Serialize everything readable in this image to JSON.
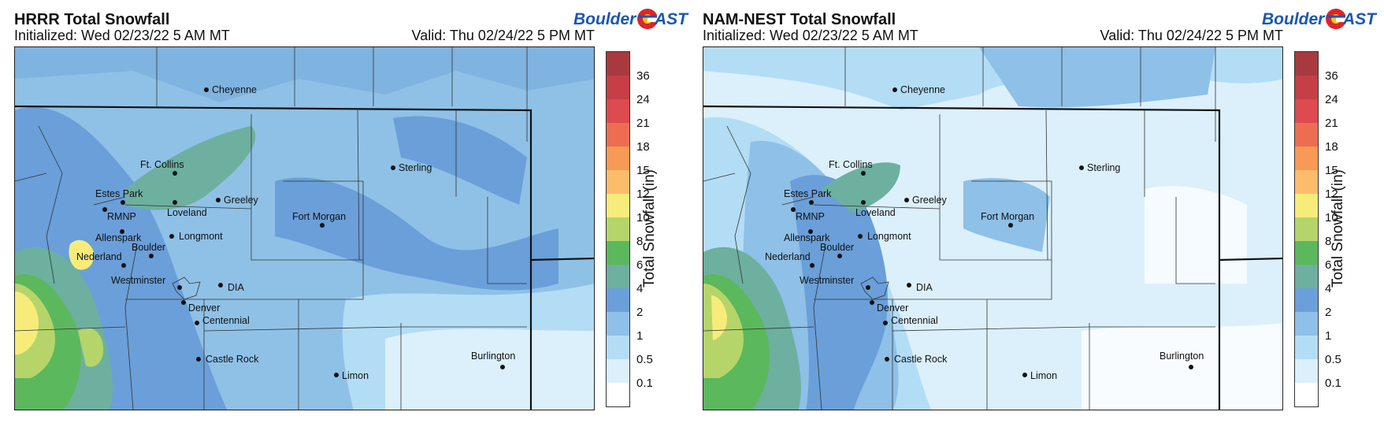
{
  "panels": [
    {
      "id": "hrrr",
      "title": "HRRR Total Snowfall",
      "initialized": "Initialized: Wed 02/23/22 5 AM MT",
      "valid": "Valid: Thu 02/24/22 5 PM MT",
      "logo_left": "Boulder",
      "logo_right": "AST"
    },
    {
      "id": "namnest",
      "title": "NAM-NEST Total Snowfall",
      "initialized": "Initialized: Wed 02/23/22 5 AM MT",
      "valid": "Valid: Thu 02/24/22 5 PM MT",
      "logo_left": "Boulder",
      "logo_right": "AST"
    }
  ],
  "colorbar": {
    "label": "Total Snowfall (in)",
    "ticks": [
      "36",
      "24",
      "21",
      "18",
      "15",
      "12",
      "10",
      "8",
      "6",
      "4",
      "2",
      "1",
      "0.5",
      "0.1"
    ],
    "colors": [
      "#ffffff",
      "#dcf0fb",
      "#b3ddf5",
      "#8ec0e8",
      "#6a9fd9",
      "#6db0a0",
      "#5cb85c",
      "#b5d56a",
      "#f7ec7a",
      "#fbbd6c",
      "#f69a55",
      "#ee6d50",
      "#dd4a4f",
      "#c63f46",
      "#a83a3f"
    ]
  },
  "cities": [
    {
      "name": "Cheyenne"
    },
    {
      "name": "Ft. Collins"
    },
    {
      "name": "Sterling"
    },
    {
      "name": "Estes Park"
    },
    {
      "name": "Greeley"
    },
    {
      "name": "RMNP"
    },
    {
      "name": "Loveland"
    },
    {
      "name": "Fort Morgan"
    },
    {
      "name": "Allenspark"
    },
    {
      "name": "Longmont"
    },
    {
      "name": "Boulder"
    },
    {
      "name": "Nederland"
    },
    {
      "name": "Westminster"
    },
    {
      "name": "DIA"
    },
    {
      "name": "Denver"
    },
    {
      "name": "Centennial"
    },
    {
      "name": "Castle Rock"
    },
    {
      "name": "Limon"
    },
    {
      "name": "Burlington"
    }
  ]
}
